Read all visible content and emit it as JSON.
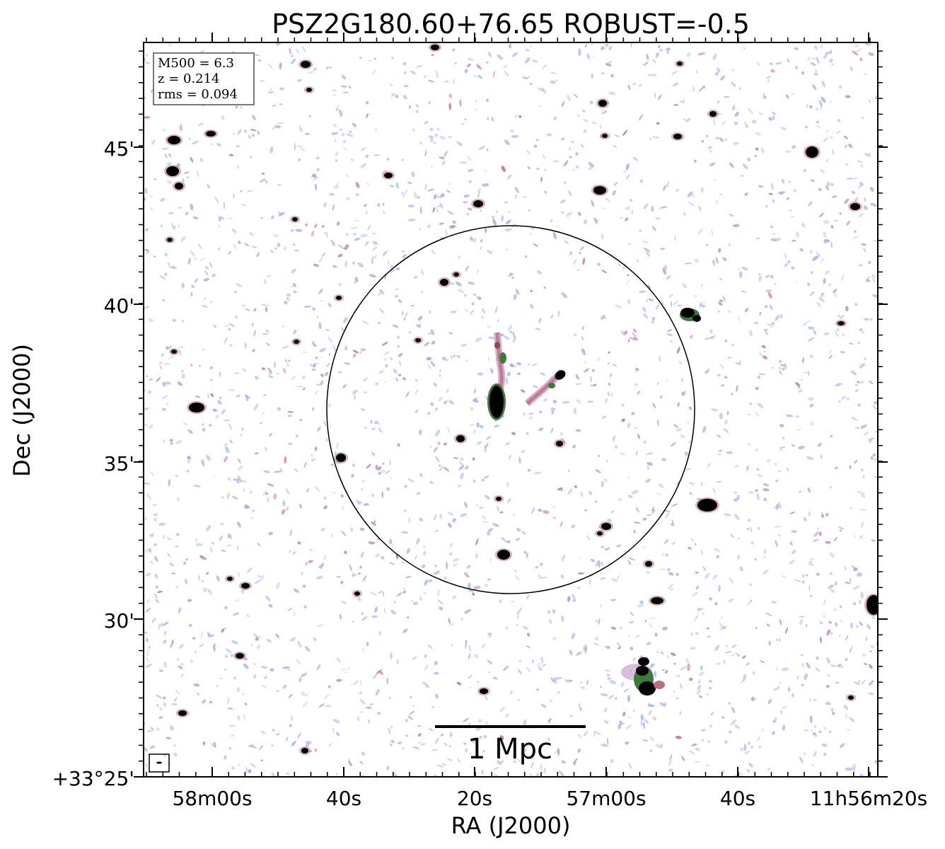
{
  "title": "PSZ2G180.60+76.65 ROBUST=-0.5",
  "xlabel": "RA (J2000)",
  "ylabel": "Dec (J2000)",
  "x_ticks": [
    "58m00s",
    "40s",
    "20s",
    "57m00s",
    "40s",
    "11h56m20s"
  ],
  "y_ticks": [
    "+33°25'",
    "30'",
    "35'",
    "40'",
    "45'"
  ],
  "info": {
    "m500": "M500 = 6.3",
    "z": "z = 0.214",
    "rms": "rms = 0.094"
  },
  "scale_bar_label": "1 Mpc",
  "colors": {
    "background": "#ffffff",
    "noise_blue": "#9fb4e6",
    "noise_purple": "#c488c8",
    "noise_rose": "#b9707d",
    "source_core": "#000000",
    "source_halo": "#3c7a3c"
  }
}
